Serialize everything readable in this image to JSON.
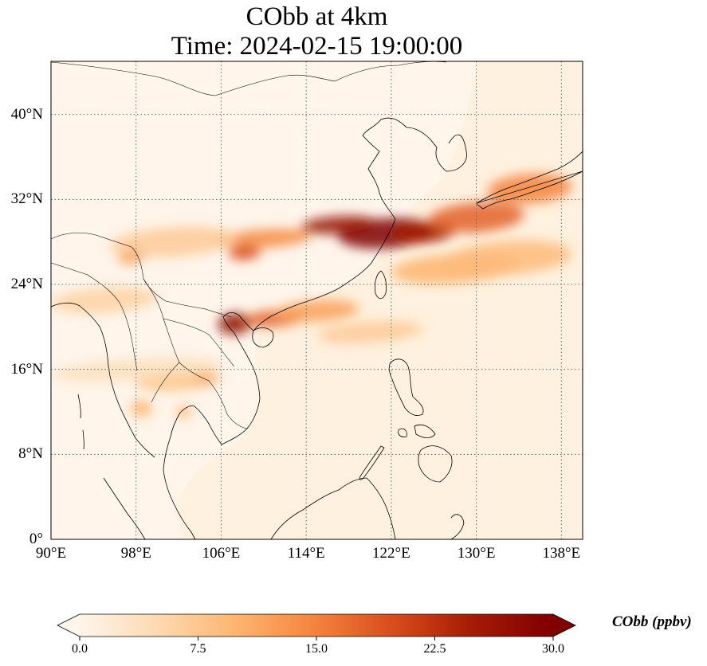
{
  "title_line1": "CObb at 4km",
  "title_line2": "Time: 2024-02-15 19:00:00",
  "colorbar_label": "CObb (ppbv)",
  "colormap": [
    "#fff5eb",
    "#fdd9b0",
    "#fdb46e",
    "#f4823c",
    "#d84a1b",
    "#a41a05",
    "#7f0000"
  ],
  "ocean_tint": "#ffedd6",
  "map": {
    "lon_range": [
      90,
      140
    ],
    "lat_range": [
      0,
      45
    ],
    "xticks": [
      {
        "value": 90,
        "label": "90°E"
      },
      {
        "value": 98,
        "label": "98°E"
      },
      {
        "value": 106,
        "label": "106°E"
      },
      {
        "value": 114,
        "label": "114°E"
      },
      {
        "value": 122,
        "label": "122°E"
      },
      {
        "value": 130,
        "label": "130°E"
      },
      {
        "value": 138,
        "label": "138°E"
      }
    ],
    "yticks": [
      {
        "value": 0,
        "label": "0°"
      },
      {
        "value": 8,
        "label": "8°N"
      },
      {
        "value": 16,
        "label": "16°N"
      },
      {
        "value": 24,
        "label": "24°N"
      },
      {
        "value": 32,
        "label": "32°N"
      },
      {
        "value": 40,
        "label": "40°N"
      }
    ],
    "gridlines": true,
    "colorbar": {
      "vmin": 0,
      "vmax": 30,
      "extend": "both",
      "ticks": [
        {
          "value": 0,
          "label": "0.0"
        },
        {
          "value": 7.5,
          "label": "7.5"
        },
        {
          "value": 15,
          "label": "15.0"
        },
        {
          "value": 22.5,
          "label": "22.5"
        },
        {
          "value": 30,
          "label": "30.0"
        }
      ]
    },
    "plumes": [
      {
        "lon": 121.5,
        "lat": 28.8,
        "rlon": 4.5,
        "rlat": 1.4,
        "value": 30
      },
      {
        "lon": 117,
        "lat": 29.6,
        "rlon": 3.5,
        "rlat": 0.8,
        "value": 27
      },
      {
        "lon": 125,
        "lat": 28.9,
        "rlon": 3.0,
        "rlat": 1.0,
        "value": 25
      },
      {
        "lon": 130,
        "lat": 30.3,
        "rlon": 4.5,
        "rlat": 1.4,
        "value": 18
      },
      {
        "lon": 135,
        "lat": 33.0,
        "rlon": 4.0,
        "rlat": 1.4,
        "value": 15
      },
      {
        "lon": 110,
        "lat": 28.3,
        "rlon": 4.5,
        "rlat": 0.9,
        "value": 14
      },
      {
        "lon": 108.2,
        "lat": 27.0,
        "rlon": 1.5,
        "rlat": 0.7,
        "value": 20
      },
      {
        "lon": 101.5,
        "lat": 28.0,
        "rlon": 6.0,
        "rlat": 1.4,
        "value": 7
      },
      {
        "lon": 97.5,
        "lat": 26.5,
        "rlon": 1.2,
        "rlat": 0.6,
        "value": 12
      },
      {
        "lon": 107.3,
        "lat": 20.3,
        "rlon": 1.6,
        "rlat": 1.0,
        "value": 28
      },
      {
        "lon": 111,
        "lat": 20.8,
        "rlon": 2.8,
        "rlat": 0.8,
        "value": 18
      },
      {
        "lon": 115,
        "lat": 21.5,
        "rlon": 4.0,
        "rlat": 1.0,
        "value": 12
      },
      {
        "lon": 104.5,
        "lat": 15.0,
        "rlon": 0.9,
        "rlat": 0.6,
        "value": 20
      },
      {
        "lon": 102,
        "lat": 15.0,
        "rlon": 4.0,
        "rlat": 1.0,
        "value": 8
      },
      {
        "lon": 98.5,
        "lat": 12.3,
        "rlon": 1.0,
        "rlat": 0.8,
        "value": 10
      },
      {
        "lon": 102.5,
        "lat": 12.0,
        "rlon": 0.7,
        "rlat": 0.6,
        "value": 10
      },
      {
        "lon": 128,
        "lat": 25.5,
        "rlon": 6.0,
        "rlat": 1.4,
        "value": 10
      },
      {
        "lon": 133,
        "lat": 26.5,
        "rlon": 6.0,
        "rlat": 1.6,
        "value": 9
      },
      {
        "lon": 120,
        "lat": 19.5,
        "rlon": 5.0,
        "rlat": 1.0,
        "value": 7
      },
      {
        "lon": 98,
        "lat": 16.0,
        "rlon": 8.0,
        "rlat": 1.0,
        "value": 4
      },
      {
        "lon": 95,
        "lat": 22.5,
        "rlon": 5.0,
        "rlat": 1.2,
        "value": 6
      }
    ]
  }
}
